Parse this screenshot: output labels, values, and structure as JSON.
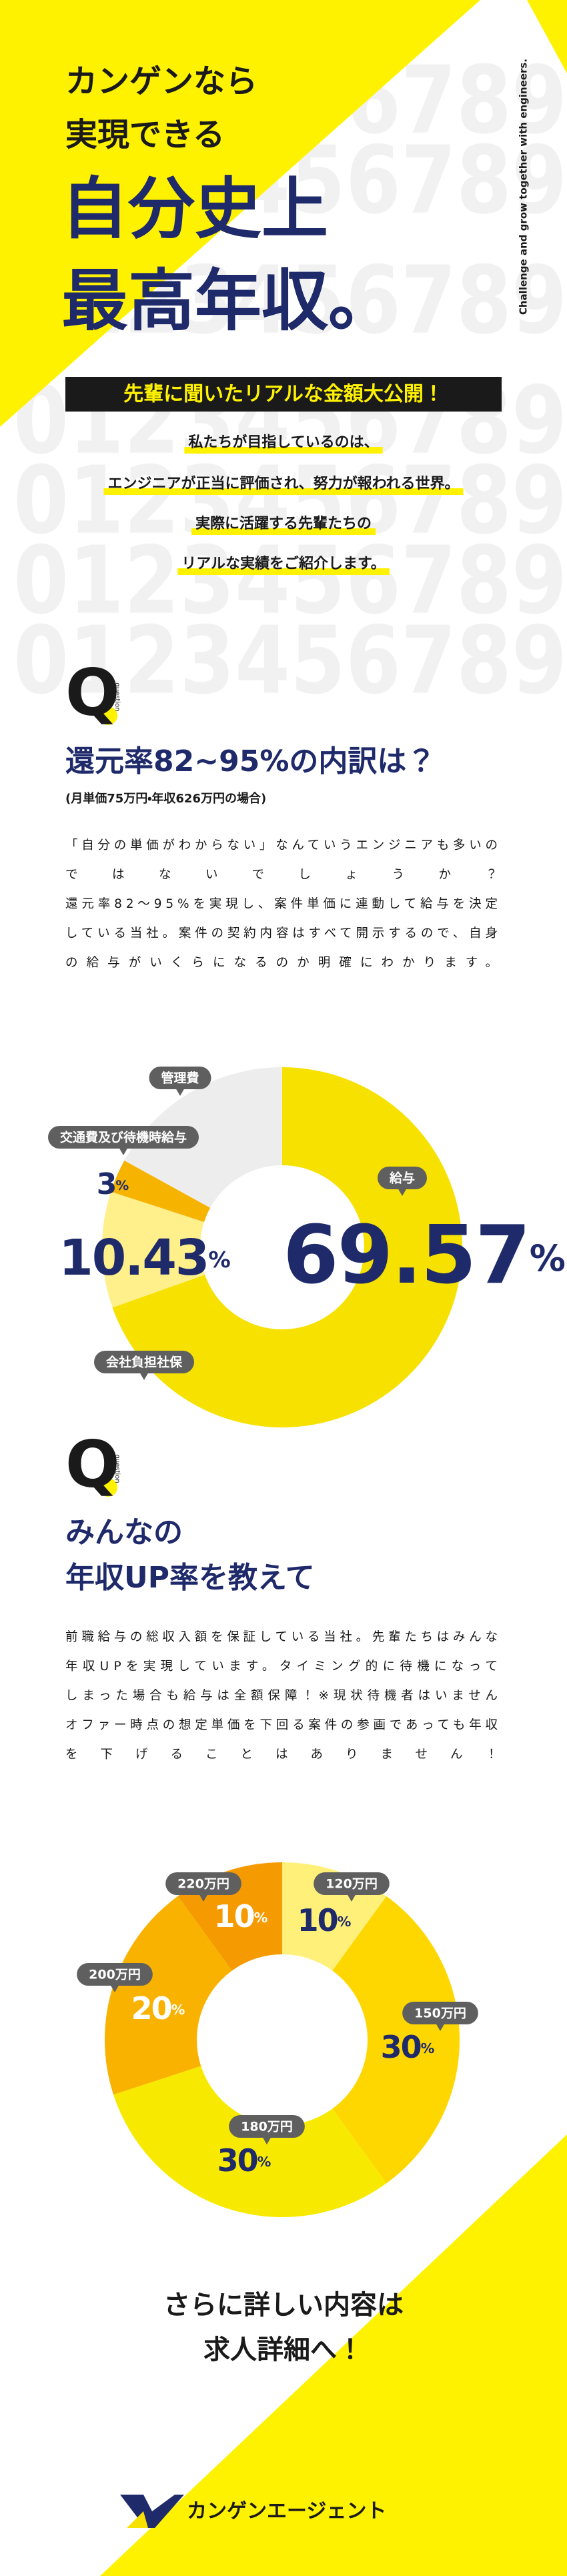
{
  "header": {
    "lines": [
      "カンゲンなら",
      "実現できる"
    ],
    "headline": [
      "自分史上",
      "最高年収。"
    ],
    "tagline": "Challenge and grow together with engineers.",
    "background_digits": "0123456789"
  },
  "banner": "先輩に聞いたリアルな金額大公開！",
  "intro": [
    "私たちが目指しているのは、",
    "エンジニアが正当に評価され、努力が報われる世界。",
    "実際に活躍する先輩たちの",
    "リアルな実績をご紹介します。"
  ],
  "sections": [
    {
      "q": "Q",
      "q_sub": "question",
      "title": [
        "還元率82~95%の内訳は？"
      ],
      "subtitle": "(月単価75万円・年収626万円の場合)",
      "body": [
        "「自分の単価がわからない」なんていうエンジニアも多いの",
        "ではないでしょうか？",
        "還元率82～95%を実現し、案件単価に連動して給与を決定",
        "している当社。案件の契約内容はすべて開示するので、自身",
        "の給与がいくらになるのか明確にわかります。"
      ]
    },
    {
      "q": "Q",
      "q_sub": "question",
      "title": [
        "みんなの",
        "年収UP率を教えて"
      ],
      "body": [
        "前職給与の総収入額を保証している当社。先輩たちはみんな",
        "年収UPを実現しています。タイミング的に待機になって",
        "しまった場合も給与は全額保障！※現状待機者はいません",
        "オファー時点の想定単価を下回る案件の参画であっても年収",
        "を下げることはありません！"
      ]
    }
  ],
  "chart_data": [
    {
      "type": "pie",
      "donut": true,
      "categories": [
        "給与",
        "会社負担社保",
        "交通費及び待機時給与",
        "管理費"
      ],
      "values": [
        69.57,
        10.43,
        3,
        17
      ],
      "value_labels": [
        "69.57%",
        "10.43%",
        "3%",
        null
      ],
      "colors": [
        "#f7e100",
        "#fff08c",
        "#f6b400",
        "#ededed"
      ]
    },
    {
      "type": "pie",
      "donut": true,
      "categories": [
        "120万円",
        "150万円",
        "180万円",
        "200万円",
        "220万円"
      ],
      "values": [
        10,
        30,
        30,
        20,
        10
      ],
      "value_labels": [
        "10%",
        "30%",
        "30%",
        "20%",
        "10%"
      ],
      "colors": [
        "#fff07a",
        "#ffd700",
        "#f7ea00",
        "#f9b200",
        "#f59a00"
      ]
    }
  ],
  "cta": [
    "さらに詳しい内容は",
    "求人詳細へ！"
  ],
  "logo": "カンゲンエージェント"
}
